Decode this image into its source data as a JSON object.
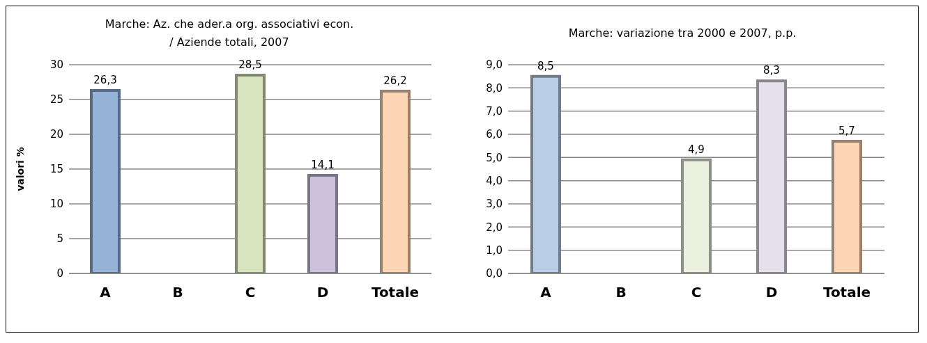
{
  "chart_data": [
    {
      "type": "bar",
      "title": "Marche: Az. che ader.a org. associativi econ. / Aziende totali, 2007",
      "ylabel": "valori %",
      "categories": [
        "A",
        "B",
        "C",
        "D",
        "Totale"
      ],
      "values": [
        26.3,
        null,
        28.5,
        14.1,
        26.2
      ],
      "colors": [
        "#95b3d7",
        "#95b3d7",
        "#d7e4bd",
        "#ccc1da",
        "#fcd5b5"
      ],
      "value_labels": [
        "26,3",
        null,
        "28,5",
        "14,1",
        "26,2"
      ],
      "ylim": [
        0,
        30
      ],
      "yticks": [
        0,
        5,
        10,
        15,
        20,
        25,
        30
      ],
      "grid": "y",
      "legend": false
    },
    {
      "type": "bar",
      "title": "Marche: variazione tra 2000 e 2007, p.p.",
      "categories": [
        "A",
        "B",
        "C",
        "D",
        "Totale"
      ],
      "values": [
        8.5,
        null,
        4.9,
        8.3,
        5.7
      ],
      "colors": [
        "#b9cde5",
        "#b9cde5",
        "#ebf1de",
        "#e6e0ec",
        "#fcd5b5"
      ],
      "value_labels": [
        "8,5",
        null,
        "4,9",
        "8,3",
        "5,7"
      ],
      "ylim": [
        0,
        9
      ],
      "yticks": [
        {
          "value": 0,
          "label": "0,0"
        },
        {
          "value": 1,
          "label": "1,0"
        },
        {
          "value": 2,
          "label": "2,0"
        },
        {
          "value": 3,
          "label": "3,0"
        },
        {
          "value": 4,
          "label": "4,0"
        },
        {
          "value": 5,
          "label": "5,0"
        },
        {
          "value": 6,
          "label": "6,0"
        },
        {
          "value": 7,
          "label": "7,0"
        },
        {
          "value": 8,
          "label": "8,0"
        },
        {
          "value": 9,
          "label": "9,0"
        }
      ],
      "grid": "y",
      "legend": false
    }
  ]
}
